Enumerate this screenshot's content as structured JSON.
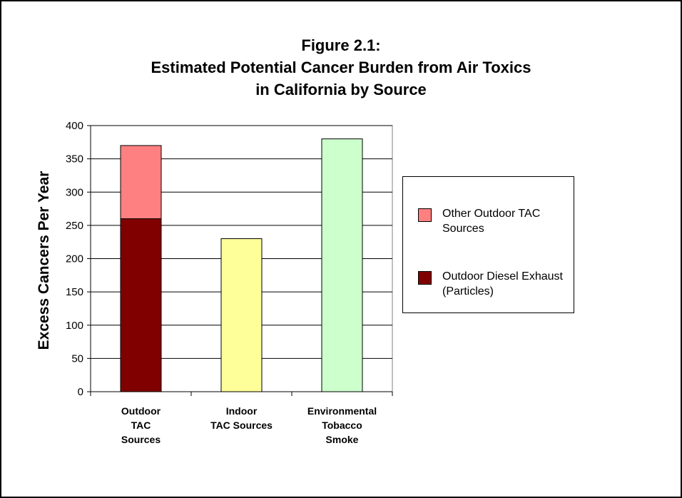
{
  "chart_data": {
    "type": "bar",
    "stacked": true,
    "title_lines": [
      "Figure 2.1:",
      "Estimated Potential Cancer Burden from Air Toxics",
      "in California by Source"
    ],
    "ylabel": "Excess Cancers Per Year",
    "xlabel": "",
    "ylim": [
      0,
      400
    ],
    "yticks": [
      "0",
      "50",
      "100",
      "150",
      "200",
      "250",
      "300",
      "350",
      "400"
    ],
    "grid": true,
    "legend_position": "right",
    "categories": [
      [
        "Outdoor",
        "TAC",
        "Sources"
      ],
      [
        "Indoor",
        "TAC Sources"
      ],
      [
        "Environmental",
        "Tobacco",
        "Smoke"
      ]
    ],
    "bars": [
      {
        "segments": [
          {
            "series": 1,
            "value": 260,
            "color": "#800000"
          },
          {
            "series": 0,
            "value": 110,
            "color": "#FF8080"
          }
        ]
      },
      {
        "segments": [
          {
            "value": 230,
            "color": "#FFFF99"
          }
        ]
      },
      {
        "segments": [
          {
            "value": 380,
            "color": "#CCFFCC"
          }
        ]
      }
    ],
    "series": [
      {
        "name": "Other Outdoor TAC Sources",
        "color": "#FF8080"
      },
      {
        "name": "Outdoor Diesel Exhaust (Particles)",
        "color": "#800000"
      }
    ]
  }
}
